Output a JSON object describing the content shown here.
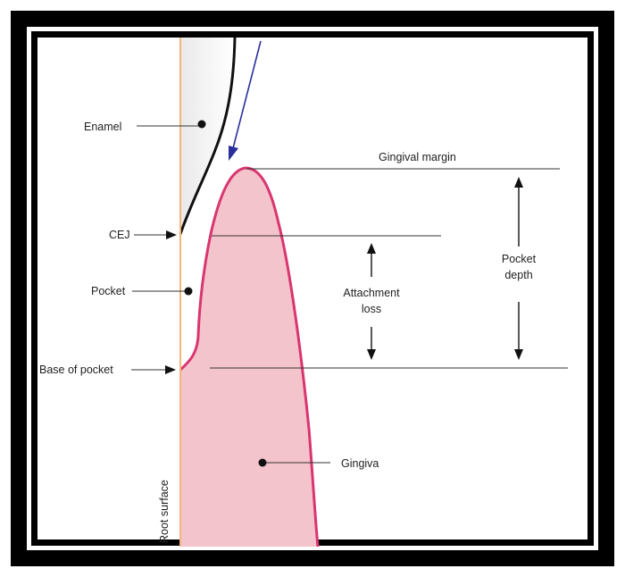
{
  "diagram": {
    "labels": {
      "enamel": "Enamel",
      "cej": "CEJ",
      "pocket": "Pocket",
      "base_of_pocket": "Base of pocket",
      "root_surface": "Root surface",
      "gingival_margin": "Gingival margin",
      "attachment_loss": [
        "Attachment",
        "loss"
      ],
      "pocket_depth": [
        "Pocket",
        "depth"
      ],
      "gingiva": "Gingiva"
    },
    "colors": {
      "frame": "#000000",
      "gingiva_fill": "#f4c4cc",
      "gingiva_outline": "#d93570",
      "root_surface_line": "#f2b57a",
      "enamel_edge": "#111111",
      "probe_arrow": "#2b2f9c",
      "line": "#333333"
    }
  }
}
